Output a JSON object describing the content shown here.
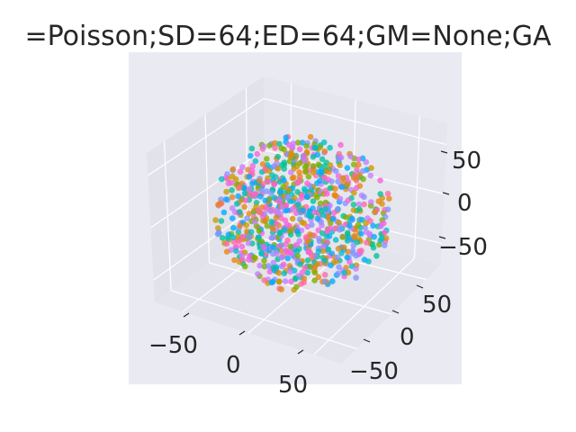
{
  "title": "=Poisson;SD=64;ED=64;GM=None;GA",
  "chart_data": {
    "type": "scatter",
    "projection": "3d",
    "title": "=Poisson;SD=64;ED=64;GM=None;GA",
    "xlabel": "",
    "ylabel": "",
    "zlabel": "",
    "xlim": [
      -80,
      80
    ],
    "ylim": [
      -80,
      80
    ],
    "zlim": [
      -80,
      80
    ],
    "x_ticks": [
      "−50",
      "0",
      "50"
    ],
    "y_ticks": [
      "−50",
      "0",
      "50"
    ],
    "z_ticks": [
      "−50",
      "0",
      "50"
    ],
    "grid": true,
    "legend": "none",
    "cloud": {
      "shape": "sphere",
      "center": [
        0,
        0,
        0
      ],
      "radius": 65,
      "point_count": 900
    },
    "colors": [
      "#f561dd",
      "#e68613",
      "#00a9ff",
      "#7cae00",
      "#00c19a",
      "#ff68a1",
      "#c77cff",
      "#00bfc4",
      "#cd9600",
      "#8494ff"
    ],
    "background": "#eaeaf2"
  }
}
